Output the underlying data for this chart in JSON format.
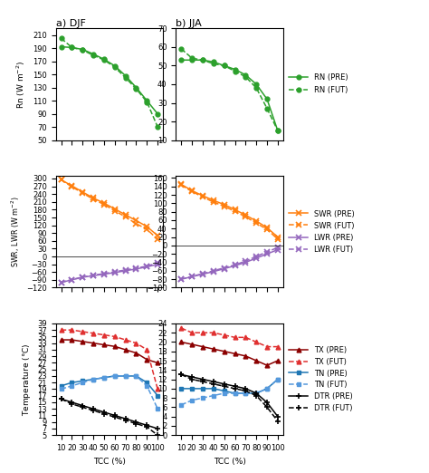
{
  "tcc": [
    10,
    20,
    30,
    40,
    50,
    60,
    70,
    80,
    90,
    100
  ],
  "djf_rn_pre": [
    192,
    191,
    188,
    181,
    173,
    163,
    148,
    130,
    110,
    90
  ],
  "djf_rn_fut": [
    205,
    191,
    187,
    179,
    172,
    161,
    145,
    128,
    108,
    70
  ],
  "jja_rn_pre": [
    53,
    53,
    53,
    52,
    50,
    48,
    45,
    40,
    32,
    15
  ],
  "jja_rn_fut": [
    59,
    54,
    53,
    51,
    50,
    47,
    44,
    38,
    27,
    15
  ],
  "djf_swr_pre": [
    295,
    272,
    248,
    225,
    205,
    183,
    160,
    138,
    115,
    80
  ],
  "djf_swr_fut": [
    295,
    268,
    244,
    220,
    200,
    176,
    152,
    126,
    105,
    65
  ],
  "djf_lwr_pre": [
    -100,
    -90,
    -80,
    -74,
    -68,
    -62,
    -55,
    -48,
    -40,
    -30
  ],
  "djf_lwr_fut": [
    -100,
    -89,
    -79,
    -72,
    -66,
    -59,
    -52,
    -45,
    -37,
    -25
  ],
  "jja_swr_pre": [
    145,
    130,
    118,
    107,
    97,
    85,
    72,
    58,
    42,
    20
  ],
  "jja_swr_fut": [
    143,
    128,
    115,
    103,
    93,
    81,
    68,
    53,
    38,
    15
  ],
  "jja_lwr_pre": [
    -80,
    -74,
    -68,
    -62,
    -55,
    -48,
    -40,
    -30,
    -20,
    -10
  ],
  "jja_lwr_fut": [
    -80,
    -73,
    -67,
    -60,
    -53,
    -46,
    -37,
    -26,
    -15,
    -5
  ],
  "djf_tx_pre": [
    34,
    34,
    33.5,
    33,
    32.5,
    32,
    31,
    30,
    28,
    27
  ],
  "djf_tx_fut": [
    37,
    37,
    36.5,
    36,
    35.5,
    35,
    34,
    33,
    31,
    19
  ],
  "djf_tn_pre": [
    20,
    21,
    21.5,
    22,
    22.5,
    23,
    23,
    23,
    21,
    17
  ],
  "djf_tn_fut": [
    19,
    20,
    21,
    22,
    22.5,
    23,
    23,
    23,
    20,
    13
  ],
  "djf_dtr_pre": [
    16,
    15,
    14,
    13,
    12,
    11,
    10,
    9,
    8,
    7
  ],
  "djf_dtr_fut": [
    16,
    14.5,
    13.5,
    12.5,
    11.5,
    10.5,
    9.5,
    8.5,
    7.5,
    5
  ],
  "jja_tx_pre": [
    20,
    19.5,
    19,
    18.5,
    18,
    17.5,
    17,
    16,
    15,
    16
  ],
  "jja_tx_fut": [
    23,
    22,
    22,
    22,
    21.5,
    21,
    21,
    20,
    19,
    19
  ],
  "jja_tn_pre": [
    10,
    10,
    10,
    10,
    9.5,
    9,
    9,
    9,
    10,
    12
  ],
  "jja_tn_fut": [
    6.5,
    7.5,
    8,
    8.5,
    9,
    9,
    9,
    9,
    10,
    12
  ],
  "jja_dtr_pre": [
    13,
    12.5,
    12,
    11.5,
    11,
    10.5,
    10,
    9,
    7,
    4
  ],
  "jja_dtr_fut": [
    13,
    12,
    11.5,
    11,
    10.5,
    10,
    9.5,
    8.5,
    6,
    3
  ],
  "color_rn": "#2ca02c",
  "color_swr": "#ff7f0e",
  "color_lwr": "#9467bd",
  "color_tx": "#8b0000",
  "color_tx_fut": "#e03030",
  "color_tn": "#1f77b4",
  "color_tn_fut": "#5599dd",
  "color_dtr": "#000000"
}
